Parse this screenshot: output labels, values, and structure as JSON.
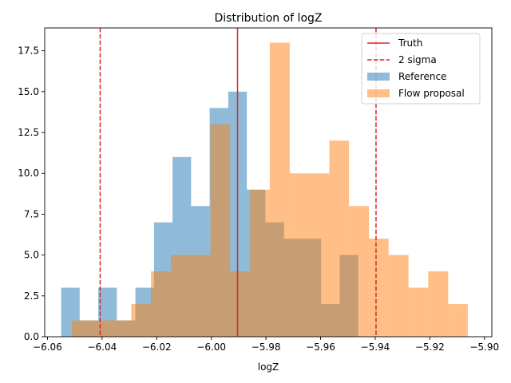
{
  "chart_data": {
    "type": "histogram",
    "title": "Distribution of logZ",
    "xlabel": "logZ",
    "ylabel": "",
    "xlim": [
      -6.061,
      -5.8973
    ],
    "ylim": [
      0,
      18.9
    ],
    "xticks": [
      -6.06,
      -6.04,
      -6.02,
      -6.0,
      -5.98,
      -5.96,
      -5.94,
      -5.92,
      -5.9
    ],
    "xtick_labels": [
      "−6.06",
      "−6.04",
      "−6.02",
      "−6.00",
      "−5.98",
      "−5.96",
      "−5.94",
      "−5.92",
      "−5.90"
    ],
    "yticks": [
      0.0,
      2.5,
      5.0,
      7.5,
      10.0,
      12.5,
      15.0,
      17.5
    ],
    "ytick_labels": [
      "0.0",
      "2.5",
      "5.0",
      "7.5",
      "10.0",
      "12.5",
      "15.0",
      "17.5"
    ],
    "grid": false,
    "legend_position": "top-right",
    "lines": [
      {
        "name": "Truth",
        "x": -5.9904,
        "style": "solid",
        "color": "#d62728"
      },
      {
        "name": "2 sigma",
        "x": -6.0407,
        "style": "dashed",
        "color": "#d62728"
      },
      {
        "name": "2 sigma",
        "x": -5.9397,
        "style": "dashed",
        "color": "#d62728"
      }
    ],
    "series": [
      {
        "name": "Reference",
        "color": "#1f77b4",
        "alpha": 0.5,
        "edges": [
          -6.055,
          -6.0482,
          -6.0414,
          -6.0346,
          -6.0278,
          -6.021,
          -6.0142,
          -6.0074,
          -6.0006,
          -5.9938,
          -5.987,
          -5.9802,
          -5.9734,
          -5.9666,
          -5.9598,
          -5.953,
          -5.9462
        ],
        "counts": [
          3,
          1,
          3,
          1,
          3,
          7,
          11,
          8,
          14,
          15,
          9,
          7,
          6,
          6,
          2,
          5
        ]
      },
      {
        "name": "Flow proposal",
        "color": "#ff7f0e",
        "alpha": 0.5,
        "edges": [
          -6.0511,
          -6.0438,
          -6.0366,
          -6.0293,
          -6.0221,
          -6.0148,
          -6.0076,
          -6.0003,
          -5.9931,
          -5.9858,
          -5.9786,
          -5.9713,
          -5.9641,
          -5.9568,
          -5.9496,
          -5.9423,
          -5.9351,
          -5.9278,
          -5.9206,
          -5.9133,
          -5.9061
        ],
        "counts": [
          1,
          1,
          1,
          2,
          4,
          5,
          5,
          13,
          4,
          9,
          18,
          10,
          10,
          12,
          8,
          6,
          5,
          3,
          4,
          2
        ]
      }
    ]
  }
}
